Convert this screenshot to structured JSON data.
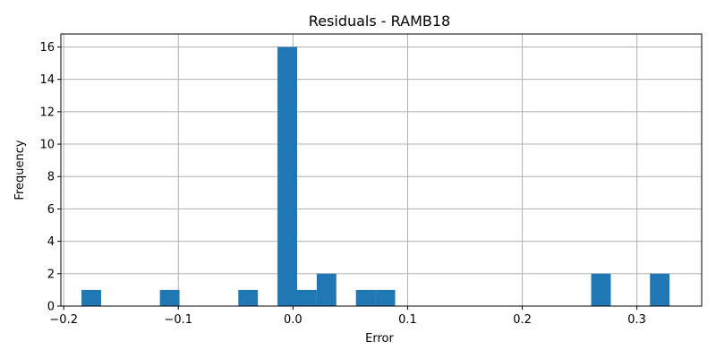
{
  "chart_data": {
    "type": "bar",
    "subtype": "histogram",
    "title": "Residuals - RAMB18",
    "xlabel": "Error",
    "ylabel": "Frequency",
    "xlim": [
      -0.2025,
      0.3565
    ],
    "ylim": [
      0,
      16.8
    ],
    "xticks": [
      -0.2,
      -0.1,
      0.0,
      0.1,
      0.2,
      0.3
    ],
    "xtick_labels": [
      "−0.2",
      "−0.1",
      "0.0",
      "0.1",
      "0.2",
      "0.3"
    ],
    "yticks": [
      0,
      2,
      4,
      6,
      8,
      10,
      12,
      14,
      16
    ],
    "ytick_labels": [
      "0",
      "2",
      "4",
      "6",
      "8",
      "10",
      "12",
      "14",
      "16"
    ],
    "grid": true,
    "bar_color": "#1f77b4",
    "bins": [
      {
        "x0": -0.1845,
        "x1": -0.1674,
        "count": 1
      },
      {
        "x0": -0.1503,
        "x1": -0.1332,
        "count": 0
      },
      {
        "x0": -0.1161,
        "x1": -0.099,
        "count": 1
      },
      {
        "x0": -0.0819,
        "x1": -0.0648,
        "count": 0
      },
      {
        "x0": -0.0477,
        "x1": -0.0306,
        "count": 1
      },
      {
        "x0": -0.0135,
        "x1": 0.0036,
        "count": 16
      },
      {
        "x0": 0.0036,
        "x1": 0.0207,
        "count": 1
      },
      {
        "x0": 0.0207,
        "x1": 0.0378,
        "count": 2
      },
      {
        "x0": 0.0549,
        "x1": 0.072,
        "count": 1
      },
      {
        "x0": 0.072,
        "x1": 0.0891,
        "count": 1
      },
      {
        "x0": 0.2601,
        "x1": 0.2772,
        "count": 2
      },
      {
        "x0": 0.3114,
        "x1": 0.3285,
        "count": 2
      }
    ]
  }
}
